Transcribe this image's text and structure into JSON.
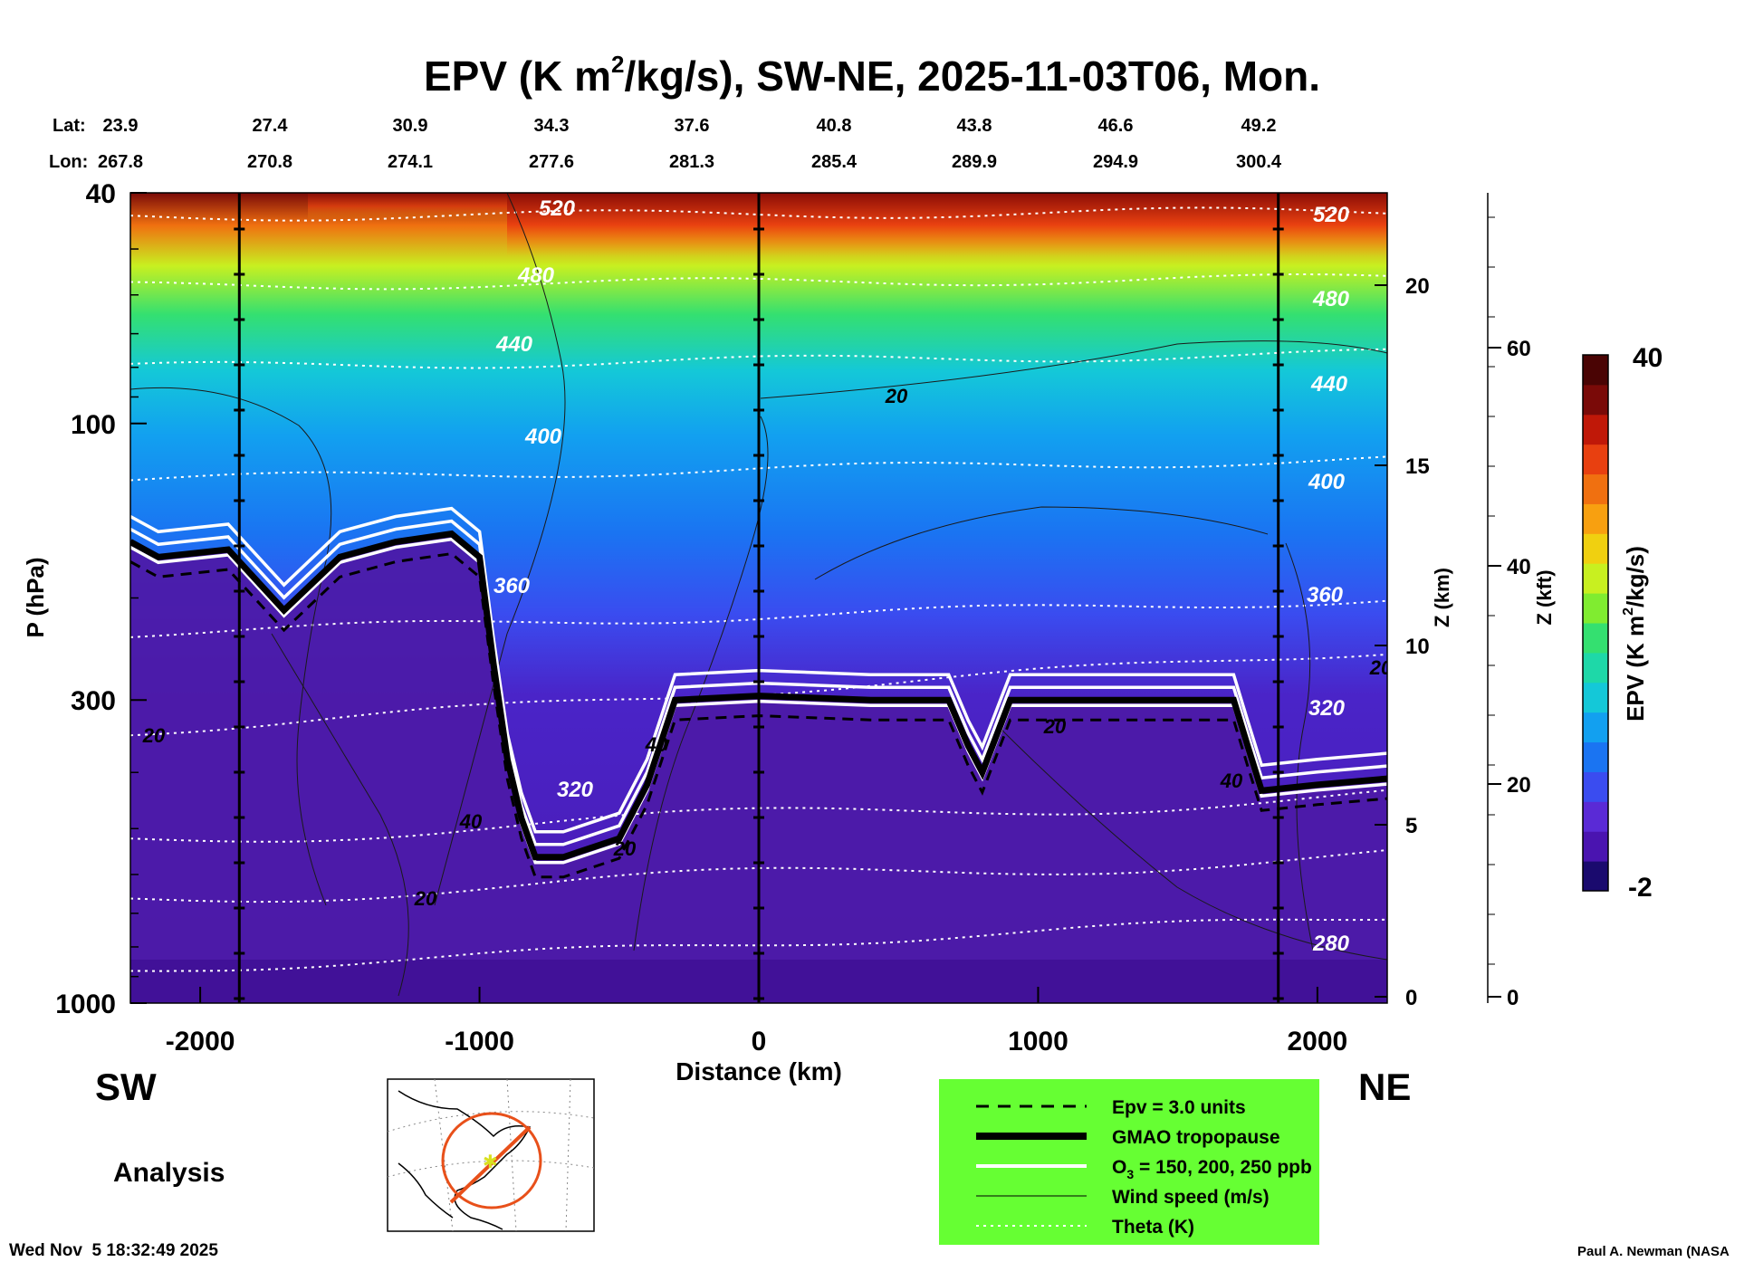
{
  "title": {
    "main": "EPV (K m",
    "sup": "2",
    "rest": "/kg/s), SW-NE, 2025-11-03T06, Mon."
  },
  "top_axes": {
    "lat_label": "Lat:",
    "lon_label": "Lon:",
    "lat": [
      "23.9",
      "27.4",
      "30.9",
      "34.3",
      "37.6",
      "40.8",
      "43.8",
      "46.6",
      "49.2"
    ],
    "lon": [
      "267.8",
      "270.8",
      "274.1",
      "277.6",
      "281.3",
      "285.4",
      "289.9",
      "294.9",
      "300.4"
    ]
  },
  "left_axis": {
    "label": "P (hPa)",
    "ticks": [
      "40",
      "100",
      "300",
      "1000"
    ]
  },
  "right_axis_km": {
    "label": "Z (km)",
    "ticks": [
      "20",
      "15",
      "10",
      "5",
      "0"
    ]
  },
  "right_axis_kft": {
    "label": "Z (kft)",
    "ticks": [
      "60",
      "40",
      "20",
      "0"
    ]
  },
  "bottom_axis": {
    "label": "Distance (km)",
    "ticks": [
      "-2000",
      "-1000",
      "0",
      "1000",
      "2000"
    ]
  },
  "direction": {
    "left": "SW",
    "right": "NE"
  },
  "analysis_label": "Analysis",
  "timestamp": "Wed Nov  5 18:32:49 2025",
  "credit": "Paul A. Newman (NASA",
  "colorbar": {
    "label_main": "EPV (K m",
    "label_sup": "2",
    "label_rest": "/kg/s)",
    "max_label": "40",
    "min_label": "-2",
    "colors": [
      "#1a0a6e",
      "#4a14b0",
      "#5a2ad6",
      "#3a4cf0",
      "#1a74f2",
      "#12a0f0",
      "#14c8d8",
      "#1ed8a8",
      "#34e070",
      "#80ec30",
      "#c8f020",
      "#f0d010",
      "#f8a010",
      "#f07010",
      "#e84010",
      "#c01808",
      "#7a0a08",
      "#4a0404"
    ]
  },
  "theta_labels": [
    "520",
    "480",
    "440",
    "400",
    "360",
    "320",
    "520",
    "480",
    "440",
    "400",
    "360",
    "320",
    "280"
  ],
  "wind_labels": [
    "20",
    "20",
    "40",
    "20",
    "20",
    "40",
    "20",
    "40",
    "20",
    "20"
  ],
  "legend": {
    "background": "#66ff33",
    "items": [
      "Epv = 3.0 units",
      "GMAO tropopause",
      "O3 = 150, 200, 250 ppb",
      "Wind speed (m/s)",
      "Theta (K)"
    ],
    "o3_prefix": "O",
    "o3_sub": "3",
    "o3_rest": " = 150, 200, 250 ppb"
  },
  "chart_data": {
    "type": "heatmap",
    "title": "EPV (K m2/kg/s), SW-NE, 2025-11-03T06, Mon.",
    "xlabel": "Distance (km)",
    "ylabel": "P (hPa)",
    "xlim": [
      -2250,
      2250
    ],
    "ylim_hpa": [
      1000,
      40
    ],
    "y_scale": "log",
    "z_range": [
      -2,
      40
    ],
    "tropopause_hpa": [
      [
        -2250,
        160
      ],
      [
        -2150,
        170
      ],
      [
        -1900,
        165
      ],
      [
        -1700,
        210
      ],
      [
        -1500,
        170
      ],
      [
        -1300,
        160
      ],
      [
        -1100,
        155
      ],
      [
        -1000,
        170
      ],
      [
        -950,
        260
      ],
      [
        -900,
        380
      ],
      [
        -850,
        480
      ],
      [
        -800,
        560
      ],
      [
        -700,
        560
      ],
      [
        -500,
        520
      ],
      [
        -400,
        420
      ],
      [
        -300,
        300
      ],
      [
        0,
        295
      ],
      [
        400,
        300
      ],
      [
        680,
        300
      ],
      [
        750,
        360
      ],
      [
        800,
        400
      ],
      [
        900,
        300
      ],
      [
        1300,
        300
      ],
      [
        1700,
        300
      ],
      [
        1750,
        360
      ],
      [
        1800,
        430
      ],
      [
        2000,
        420
      ],
      [
        2250,
        410
      ]
    ],
    "theta_levels_K": [
      280,
      320,
      360,
      400,
      440,
      480,
      520
    ],
    "wind_contours_ms": [
      20,
      40
    ]
  }
}
